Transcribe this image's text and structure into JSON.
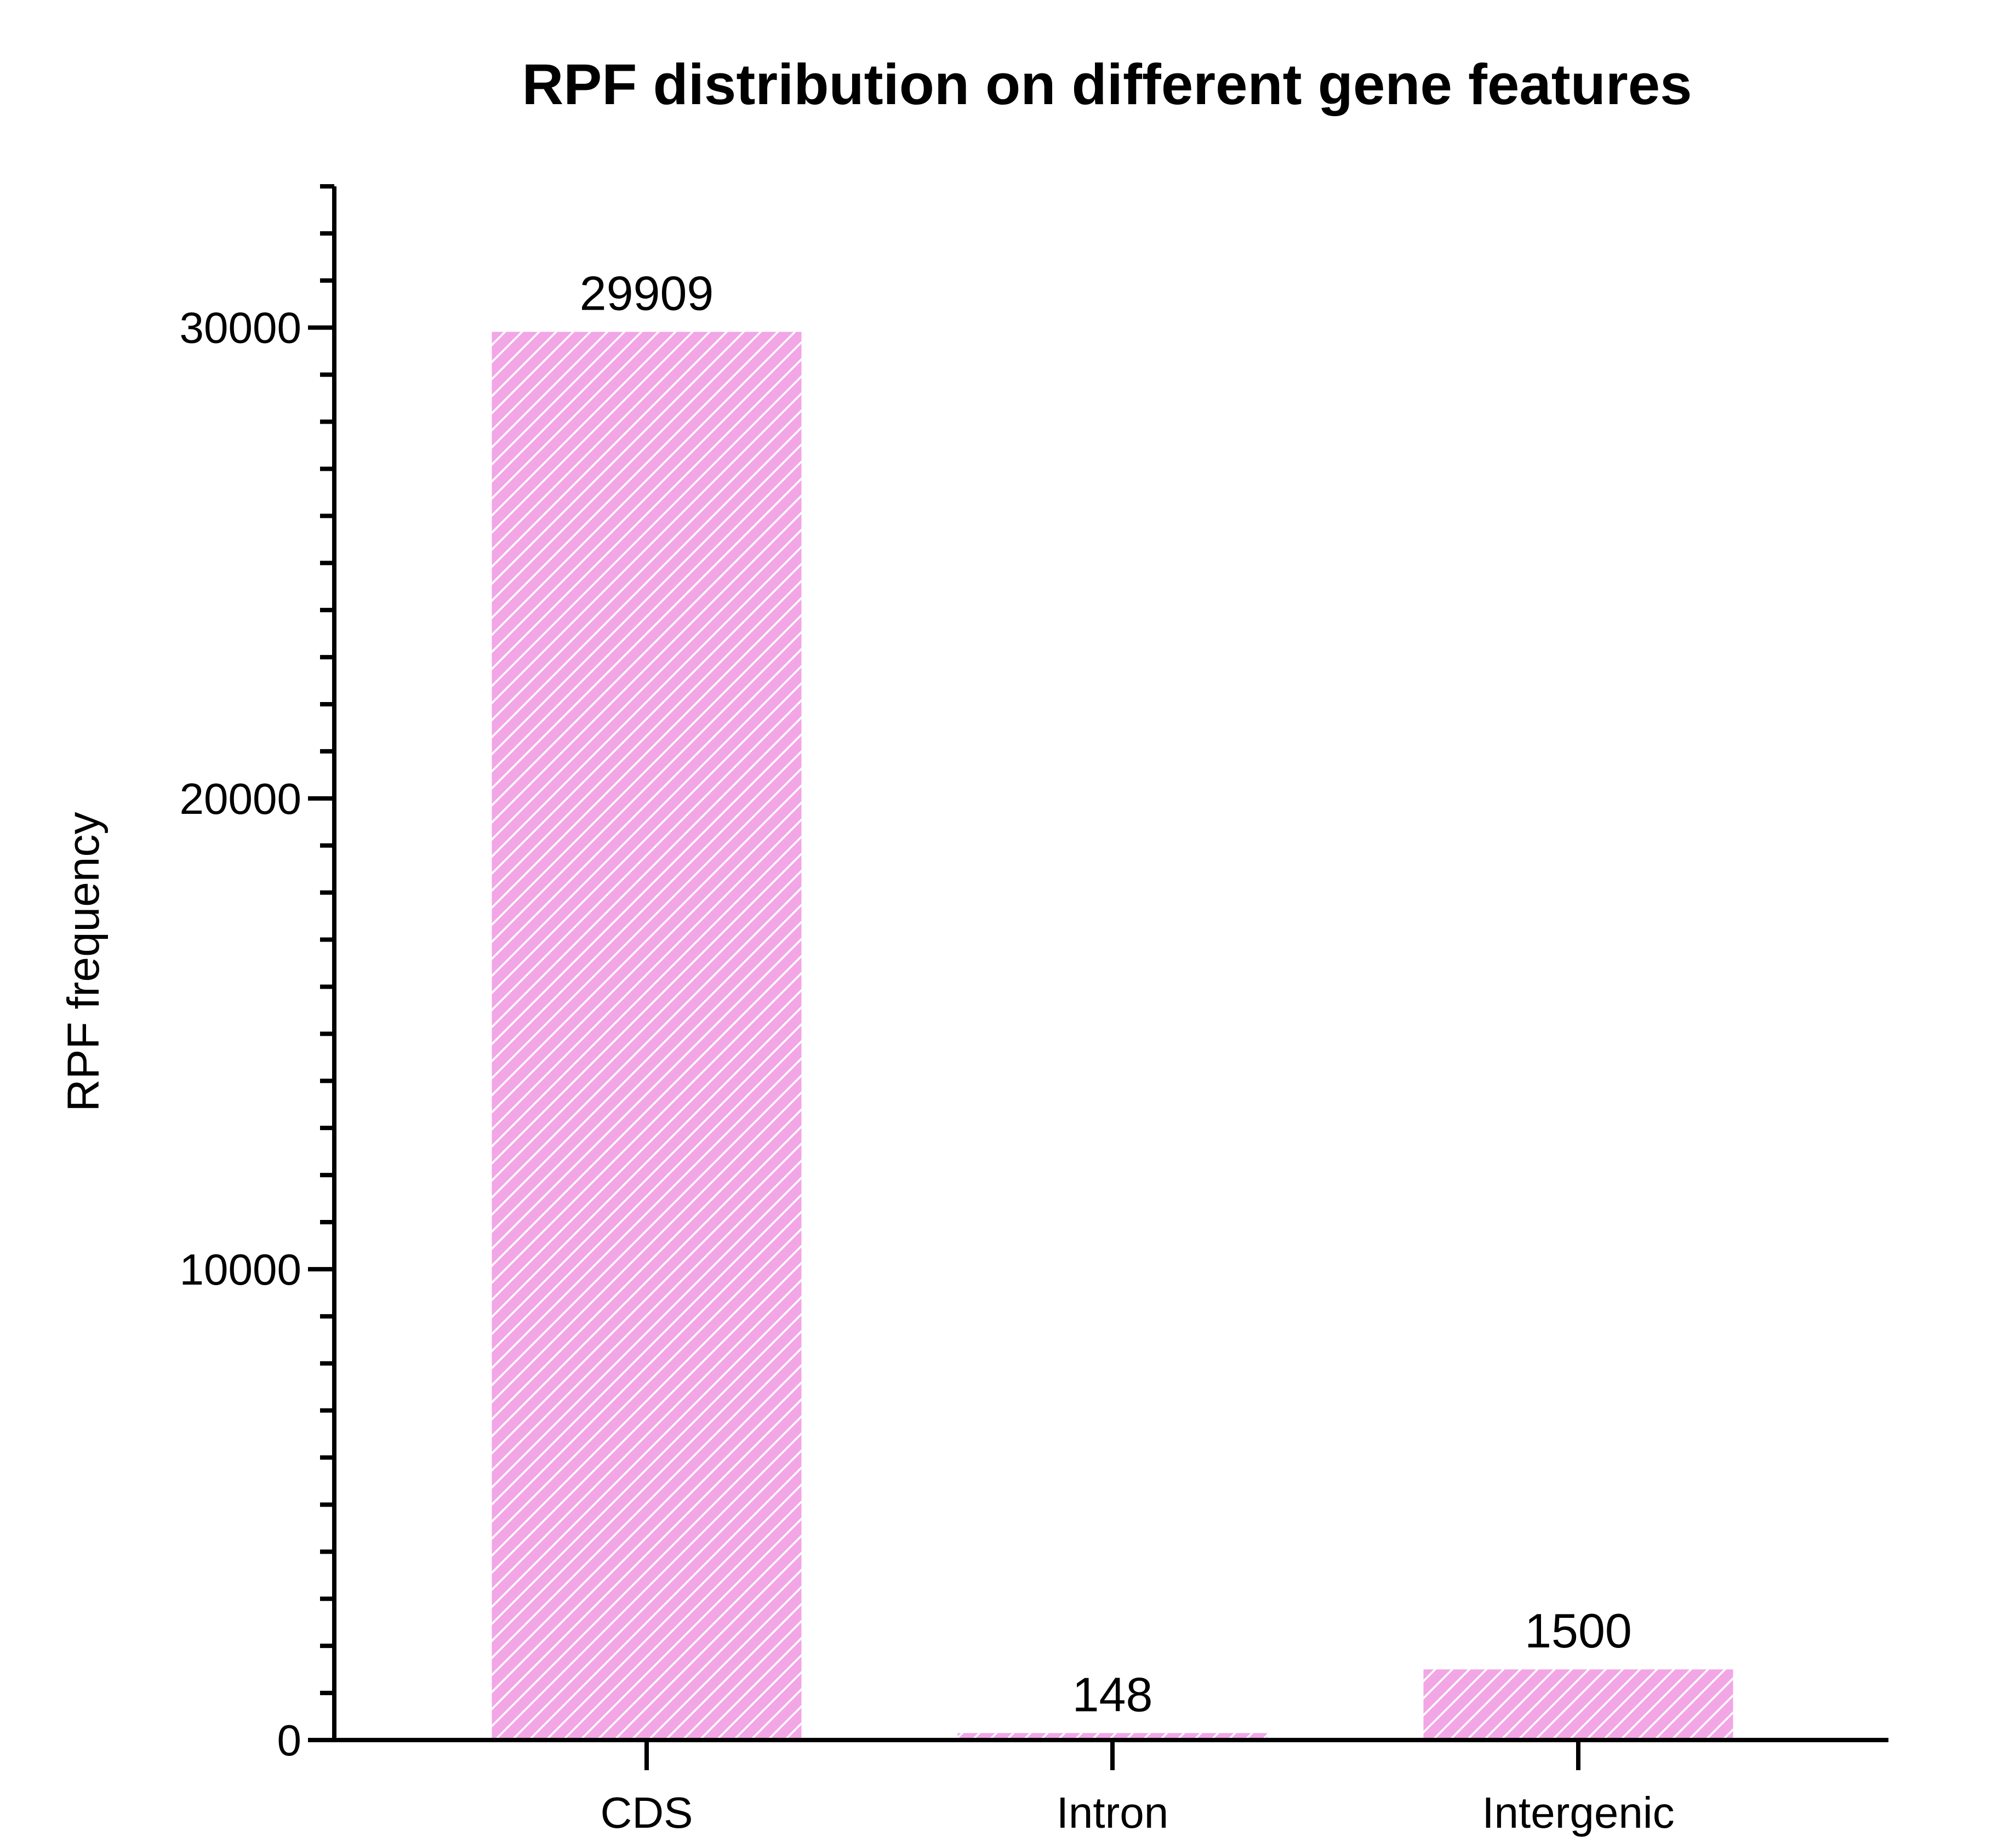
{
  "chart_data": {
    "type": "bar",
    "title": "RPF distribution on different gene features",
    "xlabel": "",
    "ylabel": "RPF frequency",
    "categories": [
      "CDS",
      "Intron",
      "Intergenic"
    ],
    "values": [
      29909,
      148,
      1500
    ],
    "data_labels": [
      "29909",
      "148",
      "1500"
    ],
    "ylim": [
      0,
      33000
    ],
    "y_ticks": [
      0,
      10000,
      20000,
      30000
    ],
    "y_tick_labels": [
      "0",
      "10000",
      "20000",
      "30000"
    ],
    "y_minor_tick_step": 1000,
    "bar_color": "#f2a6e6",
    "hatch_color": "#ffffff",
    "grid": false,
    "legend": "none"
  }
}
